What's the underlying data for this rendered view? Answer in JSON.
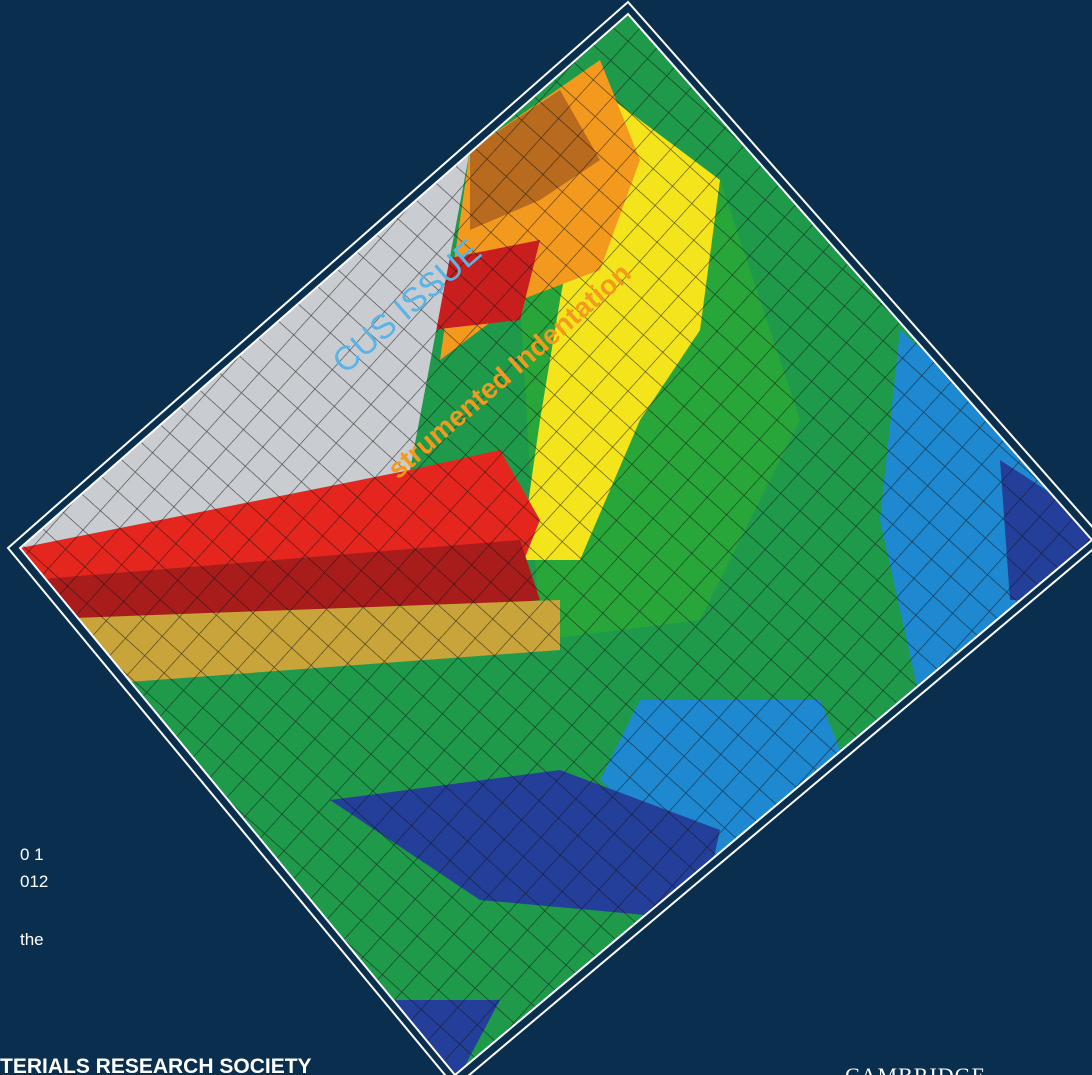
{
  "focus": "CUS ISSUE",
  "topic": "strumented Indentation",
  "issue_lines": [
    "0 1",
    "012"
  ],
  "publisher_intro": "the",
  "society": "TERIALS RESEARCH SOCIETY",
  "publisher": "CAMBRIDGE"
}
